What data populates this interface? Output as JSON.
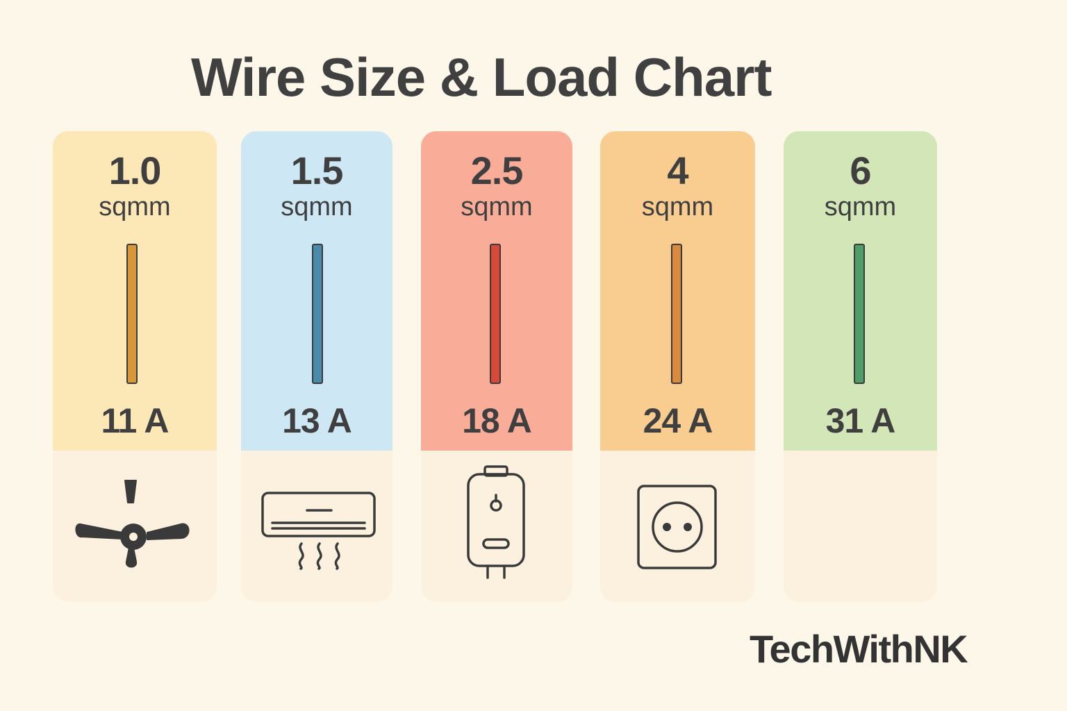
{
  "title": "Wire Size & Load Chart",
  "brand": "TechWithNK",
  "columns": [
    {
      "size": "1.0",
      "unit": "sqmm",
      "current": "11 A",
      "bg_color": "#fbe8b6",
      "wire_color": "#d8963a",
      "icon": "ceiling-fan-icon"
    },
    {
      "size": "1.5",
      "unit": "sqmm",
      "current": "13 A",
      "bg_color": "#cde8f4",
      "wire_color": "#4a8aab",
      "icon": "air-conditioner-icon"
    },
    {
      "size": "2.5",
      "unit": "sqmm",
      "current": "18 A",
      "bg_color": "#f9ad98",
      "wire_color": "#d9493a",
      "icon": "water-heater-icon"
    },
    {
      "size": "4",
      "unit": "sqmm",
      "current": "24 A",
      "bg_color": "#f9cc90",
      "wire_color": "#d78a40",
      "icon": "power-socket-icon"
    },
    {
      "size": "6",
      "unit": "sqmm",
      "current": "31 A",
      "bg_color": "#d2e6b8",
      "wire_color": "#4f9e68",
      "icon": ""
    }
  ]
}
